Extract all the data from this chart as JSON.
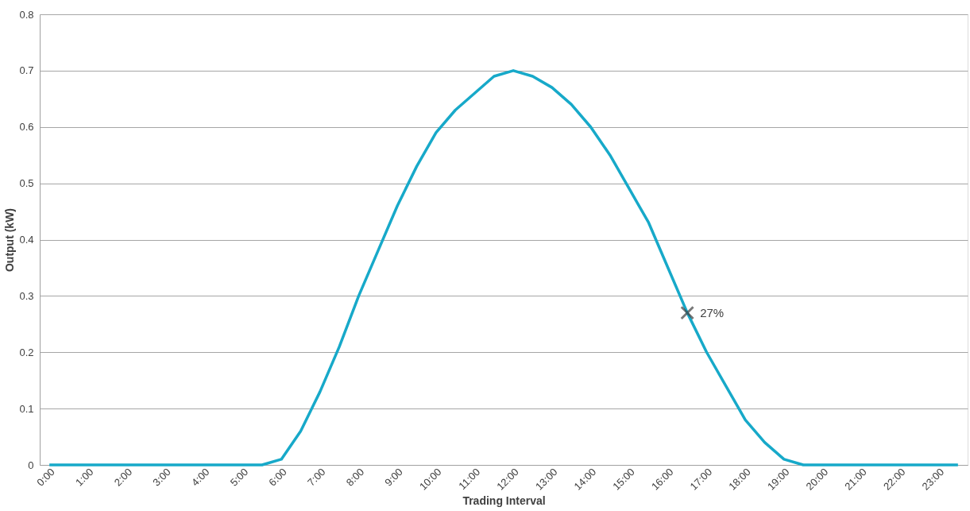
{
  "chart_data": {
    "type": "line",
    "xlabel": "Trading Interval",
    "ylabel": "Output (kW)",
    "categories": [
      "0:00",
      null,
      "1:00",
      null,
      "2:00",
      null,
      "3:00",
      null,
      "4:00",
      null,
      "5:00",
      null,
      "6:00",
      null,
      "7:00",
      null,
      "8:00",
      null,
      "9:00",
      null,
      "10:00",
      null,
      "11:00",
      null,
      "12:00",
      null,
      "13:00",
      null,
      "14:00",
      null,
      "15:00",
      null,
      "16:00",
      null,
      "17:00",
      null,
      "18:00",
      null,
      "19:00",
      null,
      "20:00",
      null,
      "21:00",
      null,
      "22:00",
      null,
      "23:00",
      null
    ],
    "series": [
      {
        "color": "#17a9c9",
        "values": [
          0,
          0,
          0,
          0,
          0,
          0,
          0,
          0,
          0,
          0,
          0,
          0,
          0.01,
          0.06,
          0.13,
          0.21,
          0.3,
          0.38,
          0.46,
          0.53,
          0.59,
          0.63,
          0.66,
          0.69,
          0.7,
          0.69,
          0.67,
          0.64,
          0.6,
          0.55,
          0.49,
          0.43,
          0.35,
          0.27,
          0.2,
          0.14,
          0.08,
          0.04,
          0.01,
          0,
          0,
          0,
          0,
          0,
          0,
          0,
          0,
          0
        ]
      },
      {
        "type": "scatter",
        "color": "#404040",
        "marker": "cross",
        "values": [
          null,
          null,
          null,
          null,
          null,
          null,
          null,
          null,
          null,
          null,
          null,
          null,
          null,
          null,
          null,
          null,
          null,
          null,
          null,
          null,
          null,
          null,
          null,
          null,
          null,
          null,
          null,
          null,
          null,
          null,
          null,
          null,
          null,
          0.27,
          null,
          null,
          null,
          null,
          null,
          null,
          null,
          null,
          null,
          null,
          null,
          null,
          null,
          null
        ],
        "value_labels": [
          null,
          null,
          null,
          null,
          null,
          null,
          null,
          null,
          null,
          null,
          null,
          null,
          null,
          null,
          null,
          null,
          null,
          null,
          null,
          null,
          null,
          null,
          null,
          null,
          null,
          null,
          null,
          null,
          null,
          null,
          null,
          null,
          null,
          "27%",
          null,
          null,
          null,
          null,
          null,
          null,
          null,
          null,
          null,
          null,
          null,
          null,
          null,
          null
        ]
      }
    ],
    "ylim": [
      0,
      0.8
    ],
    "yticks": [
      0,
      0.1,
      0.2,
      0.3,
      0.4,
      0.5,
      0.6,
      0.7,
      0.8
    ],
    "grid": "y"
  }
}
